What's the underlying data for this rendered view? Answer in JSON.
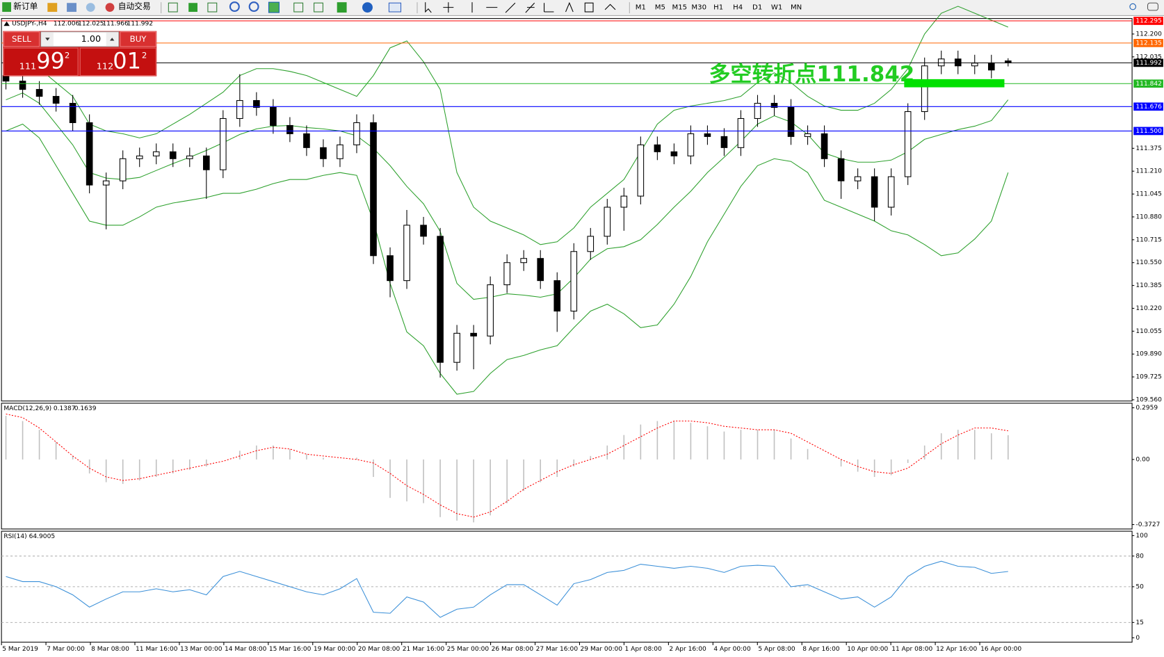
{
  "toolbar": {
    "new_order": "新订单",
    "auto_trading": "自动交易",
    "timeframes": [
      "M1",
      "M5",
      "M15",
      "M30",
      "H1",
      "H4",
      "D1",
      "W1",
      "MN"
    ]
  },
  "trade_panel": {
    "sell": "SELL",
    "buy": "BUY",
    "lot": "1.00",
    "bid": {
      "big": "111",
      "main": "99",
      "small": "2"
    },
    "ask": {
      "big": "112",
      "main": "01",
      "small": "2"
    }
  },
  "annotation": "多空转折点111.842",
  "chart_data": [
    {
      "type": "candlestick",
      "title": "USDJPY-,H4",
      "color_up": "#ffffff",
      "color_down": "#000000",
      "band_color": "#2ca02c",
      "ylim": [
        109.551,
        112.312
      ],
      "yticks": [
        {
          "value": 112.2,
          "label": "112.200"
        },
        112.035,
        111.375,
        {
          "value": 111.21,
          "label": "111.210"
        },
        111.045,
        {
          "value": 110.88,
          "label": "110.880"
        },
        110.715,
        {
          "value": 110.55,
          "label": "110.550"
        },
        110.385,
        {
          "value": 110.22,
          "label": "110.220"
        },
        110.055,
        {
          "value": 109.89,
          "label": "109.890"
        },
        109.725,
        {
          "value": 109.56,
          "label": "109.560"
        }
      ],
      "hlines": [
        {
          "value": 112.295,
          "label": "112.295",
          "color": "#ff0000"
        },
        {
          "value": 112.135,
          "label": "112.135",
          "color": "#ff6600"
        },
        {
          "value": 111.992,
          "label": "111.992",
          "color": "#000000"
        },
        {
          "value": 111.842,
          "label": "111.842",
          "color": "#22b822"
        },
        {
          "value": 111.676,
          "label": "111.676",
          "color": "#0000ff"
        },
        {
          "value": 111.5,
          "label": "111.500",
          "color": "#0000ff"
        }
      ],
      "x_labels": [
        "5 Mar 2019",
        "7 Mar 00:00",
        "8 Mar 08:00",
        "11 Mar 16:00",
        "13 Mar 00:00",
        "14 Mar 08:00",
        "15 Mar 16:00",
        "19 Mar 00:00",
        "20 Mar 08:00",
        "21 Mar 16:00",
        "25 Mar 00:00",
        "26 Mar 08:00",
        "27 Mar 16:00",
        "29 Mar 00:00",
        "1 Apr 08:00",
        "2 Apr 16:00",
        "4 Apr 00:00",
        "5 Apr 08:00",
        "8 Apr 16:00",
        "10 Apr 00:00",
        "11 Apr 08:00",
        "12 Apr 16:00",
        "16 Apr 00:00"
      ],
      "open": [
        111.9,
        111.86,
        111.8,
        111.75,
        111.7,
        111.56,
        111.11,
        111.14,
        111.3,
        111.32,
        111.35,
        111.3,
        111.32,
        111.22,
        111.59,
        111.72,
        111.67,
        111.54,
        111.48,
        111.38,
        111.3,
        111.4,
        111.56,
        110.6,
        110.42,
        110.82,
        110.74,
        109.83,
        110.04,
        110.02,
        110.39,
        110.55,
        110.58,
        110.42,
        110.2,
        110.63,
        110.74,
        110.95,
        111.03,
        111.4,
        111.35,
        111.32,
        111.48,
        111.46,
        111.38,
        111.59,
        111.7,
        111.67,
        111.46,
        111.48,
        111.3,
        111.14,
        111.17,
        110.95,
        111.17,
        111.64,
        111.97,
        112.02,
        111.97,
        111.99,
        112.006
      ],
      "high": [
        111.96,
        111.92,
        111.86,
        111.81,
        111.76,
        111.62,
        111.2,
        111.36,
        111.38,
        111.41,
        111.41,
        111.38,
        111.38,
        111.65,
        111.91,
        111.78,
        111.73,
        111.6,
        111.54,
        111.44,
        111.46,
        111.62,
        111.62,
        110.66,
        110.93,
        110.88,
        110.8,
        110.1,
        110.1,
        110.45,
        110.61,
        110.64,
        110.64,
        110.48,
        110.69,
        110.8,
        111.01,
        111.09,
        111.46,
        111.46,
        111.41,
        111.54,
        111.54,
        111.52,
        111.65,
        111.76,
        111.76,
        111.73,
        111.54,
        111.54,
        111.36,
        111.23,
        111.23,
        111.23,
        111.7,
        112.03,
        112.08,
        112.08,
        112.05,
        112.05,
        112.025
      ],
      "low": [
        111.8,
        111.74,
        111.69,
        111.64,
        111.5,
        111.05,
        110.79,
        111.08,
        111.24,
        111.26,
        111.24,
        111.24,
        111.01,
        111.16,
        111.53,
        111.61,
        111.48,
        111.42,
        111.32,
        111.24,
        111.24,
        111.34,
        110.54,
        110.3,
        110.36,
        110.68,
        109.72,
        109.77,
        109.78,
        109.96,
        110.33,
        110.49,
        110.36,
        110.05,
        110.14,
        110.57,
        110.68,
        110.78,
        110.97,
        111.29,
        111.26,
        111.26,
        111.4,
        111.32,
        111.32,
        111.53,
        111.61,
        111.4,
        111.4,
        111.24,
        111.01,
        111.08,
        110.85,
        110.89,
        111.11,
        111.58,
        111.91,
        111.91,
        111.91,
        111.88,
        111.966
      ],
      "close": [
        111.86,
        111.8,
        111.75,
        111.7,
        111.56,
        111.11,
        111.14,
        111.3,
        111.32,
        111.35,
        111.3,
        111.32,
        111.22,
        111.59,
        111.72,
        111.67,
        111.54,
        111.48,
        111.38,
        111.3,
        111.4,
        111.56,
        110.6,
        110.42,
        110.82,
        110.74,
        109.83,
        110.04,
        110.02,
        110.39,
        110.55,
        110.58,
        110.42,
        110.2,
        110.63,
        110.74,
        110.95,
        111.03,
        111.4,
        111.35,
        111.32,
        111.48,
        111.46,
        111.38,
        111.59,
        111.7,
        111.67,
        111.46,
        111.48,
        111.3,
        111.14,
        111.17,
        110.95,
        111.17,
        111.64,
        111.97,
        112.02,
        111.97,
        111.99,
        111.94,
        111.992
      ],
      "upper": [
        111.95,
        112.0,
        111.95,
        111.85,
        111.75,
        111.55,
        111.5,
        111.48,
        111.45,
        111.48,
        111.55,
        111.62,
        111.7,
        111.78,
        111.9,
        111.95,
        111.95,
        111.93,
        111.9,
        111.85,
        111.8,
        111.75,
        111.9,
        112.1,
        112.15,
        112.0,
        111.8,
        111.2,
        110.95,
        110.85,
        110.8,
        110.75,
        110.68,
        110.7,
        110.8,
        110.95,
        111.05,
        111.15,
        111.35,
        111.55,
        111.65,
        111.68,
        111.7,
        111.72,
        111.75,
        111.85,
        111.92,
        111.85,
        111.75,
        111.68,
        111.65,
        111.65,
        111.7,
        111.8,
        111.95,
        112.2,
        112.35,
        112.4,
        112.35,
        112.3,
        112.25
      ],
      "middle": [
        111.725,
        111.775,
        111.7,
        111.55,
        111.4,
        111.2,
        111.16,
        111.15,
        111.165,
        111.215,
        111.265,
        111.31,
        111.36,
        111.415,
        111.475,
        111.515,
        111.535,
        111.54,
        111.525,
        111.515,
        111.5,
        111.465,
        111.375,
        111.25,
        111.1,
        110.975,
        110.775,
        110.4,
        110.285,
        110.3,
        110.325,
        110.315,
        110.3,
        110.325,
        110.44,
        110.575,
        110.65,
        110.665,
        110.715,
        110.825,
        110.95,
        111.065,
        111.2,
        111.31,
        111.425,
        111.55,
        111.61,
        111.565,
        111.475,
        111.34,
        111.3,
        111.275,
        111.275,
        111.29,
        111.35,
        111.44,
        111.475,
        111.51,
        111.535,
        111.575,
        111.725
      ],
      "lower": [
        111.5,
        111.55,
        111.45,
        111.25,
        111.05,
        110.85,
        110.82,
        110.82,
        110.88,
        110.95,
        110.98,
        111.0,
        111.02,
        111.05,
        111.05,
        111.08,
        111.12,
        111.15,
        111.15,
        111.18,
        111.2,
        111.18,
        110.85,
        110.4,
        110.05,
        109.95,
        109.75,
        109.6,
        109.62,
        109.75,
        109.85,
        109.88,
        109.92,
        109.95,
        110.08,
        110.2,
        110.25,
        110.18,
        110.08,
        110.1,
        110.25,
        110.45,
        110.7,
        110.9,
        111.1,
        111.25,
        111.3,
        111.28,
        111.2,
        111.0,
        110.95,
        110.9,
        110.85,
        110.78,
        110.75,
        110.68,
        110.6,
        110.62,
        110.72,
        110.85,
        111.2
      ]
    },
    {
      "type": "macd",
      "title": "MACD(12,26,9)",
      "hist_color": "#c0c0c0",
      "signal_color": "#ff0000",
      "ylim": [
        -0.398,
        0.322
      ],
      "yticks": [
        0.2959,
        {
          "value": 0,
          "label": "0.00"
        },
        -0.3727
      ],
      "histogram": [
        0.25,
        0.22,
        0.17,
        0.1,
        0.02,
        -0.08,
        -0.13,
        -0.14,
        -0.12,
        -0.1,
        -0.08,
        -0.06,
        -0.04,
        0.0,
        0.05,
        0.08,
        0.08,
        0.06,
        0.03,
        0.01,
        0.0,
        0.01,
        -0.1,
        -0.22,
        -0.24,
        -0.25,
        -0.33,
        -0.35,
        -0.36,
        -0.32,
        -0.25,
        -0.18,
        -0.13,
        -0.1,
        -0.04,
        0.02,
        0.08,
        0.14,
        0.2,
        0.22,
        0.22,
        0.21,
        0.19,
        0.16,
        0.17,
        0.17,
        0.17,
        0.12,
        0.06,
        0.0,
        -0.04,
        -0.07,
        -0.1,
        -0.09,
        -0.02,
        0.08,
        0.15,
        0.17,
        0.17,
        0.15,
        0.1387
      ],
      "signal": [
        0.26,
        0.24,
        0.18,
        0.1,
        0.02,
        -0.05,
        -0.1,
        -0.12,
        -0.11,
        -0.09,
        -0.07,
        -0.05,
        -0.03,
        -0.01,
        0.02,
        0.05,
        0.07,
        0.06,
        0.03,
        0.02,
        0.01,
        0.0,
        -0.02,
        -0.08,
        -0.15,
        -0.2,
        -0.26,
        -0.31,
        -0.33,
        -0.3,
        -0.24,
        -0.17,
        -0.12,
        -0.07,
        -0.03,
        0.0,
        0.03,
        0.08,
        0.13,
        0.18,
        0.22,
        0.22,
        0.21,
        0.19,
        0.18,
        0.17,
        0.17,
        0.15,
        0.1,
        0.05,
        0.0,
        -0.04,
        -0.07,
        -0.08,
        -0.05,
        0.02,
        0.09,
        0.14,
        0.18,
        0.18,
        0.1639
      ]
    },
    {
      "type": "rsi",
      "title": "RSI(14)",
      "color": "#3a8fd8",
      "ylim": [
        -4.3,
        104.3
      ],
      "yticks": [
        100,
        80,
        50,
        15,
        0
      ],
      "levels": [
        80,
        50,
        15
      ],
      "values": [
        60,
        55,
        55,
        50,
        42,
        30,
        38,
        45,
        45,
        48,
        45,
        47,
        42,
        60,
        65,
        60,
        55,
        50,
        45,
        42,
        48,
        58,
        25,
        24,
        40,
        35,
        20,
        28,
        30,
        42,
        52,
        52,
        42,
        32,
        53,
        57,
        64,
        66,
        72,
        70,
        68,
        70,
        68,
        64,
        70,
        71,
        70,
        50,
        52,
        45,
        38,
        40,
        30,
        40,
        60,
        70,
        75,
        70,
        69,
        63,
        64.9005
      ]
    }
  ]
}
